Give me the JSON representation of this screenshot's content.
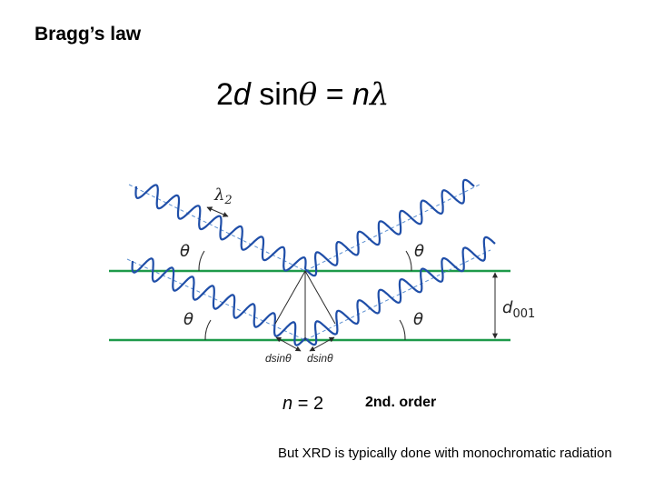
{
  "slide": {
    "title": "Bragg’s law",
    "equation": {
      "coef": "2",
      "d": "d",
      "sin": "sin",
      "theta": "θ",
      "equals": "=",
      "n": "n",
      "lambda": "λ"
    },
    "order": {
      "n_symbol": "n",
      "equals": "=",
      "n_value": "2",
      "label": "2nd. order"
    },
    "note": "But XRD is typically done with monochromatic radiation"
  },
  "diagram": {
    "lambda_label": "λ",
    "lambda_subscript": "2",
    "theta": "θ",
    "d_label": "d",
    "d_subscript": "001",
    "path_diff_label": "dsinθ",
    "colors": {
      "planes": "#1e9a4a",
      "wave": "#1f4ea8",
      "ray": "#5b8fd0",
      "construction": "#2a2a2a"
    }
  }
}
